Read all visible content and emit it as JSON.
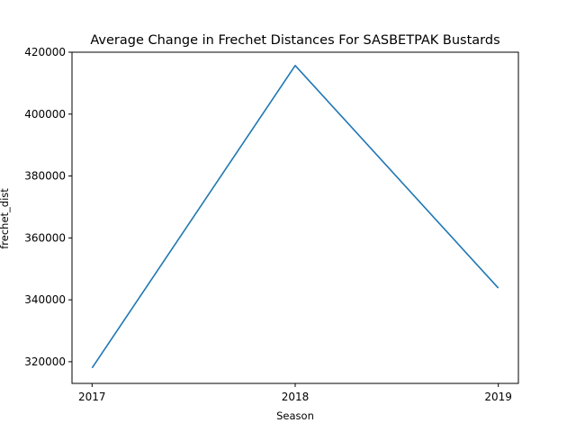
{
  "chart_data": {
    "type": "line",
    "title": "Average Change in Frechet Distances For SASBETPAK Bustards",
    "xlabel": "Season",
    "ylabel": "frechet_dist",
    "categories": [
      "2017",
      "2018",
      "2019"
    ],
    "series": [
      {
        "values": [
          318000,
          415700,
          343800
        ],
        "color": "#1f77b4"
      }
    ],
    "ylim": [
      313000,
      420000
    ],
    "yticks": [
      320000,
      340000,
      360000,
      380000,
      400000,
      420000
    ],
    "ytick_labels": [
      "320000",
      "340000",
      "360000",
      "380000",
      "400000",
      "420000"
    ],
    "grid": false,
    "legend": "none"
  }
}
